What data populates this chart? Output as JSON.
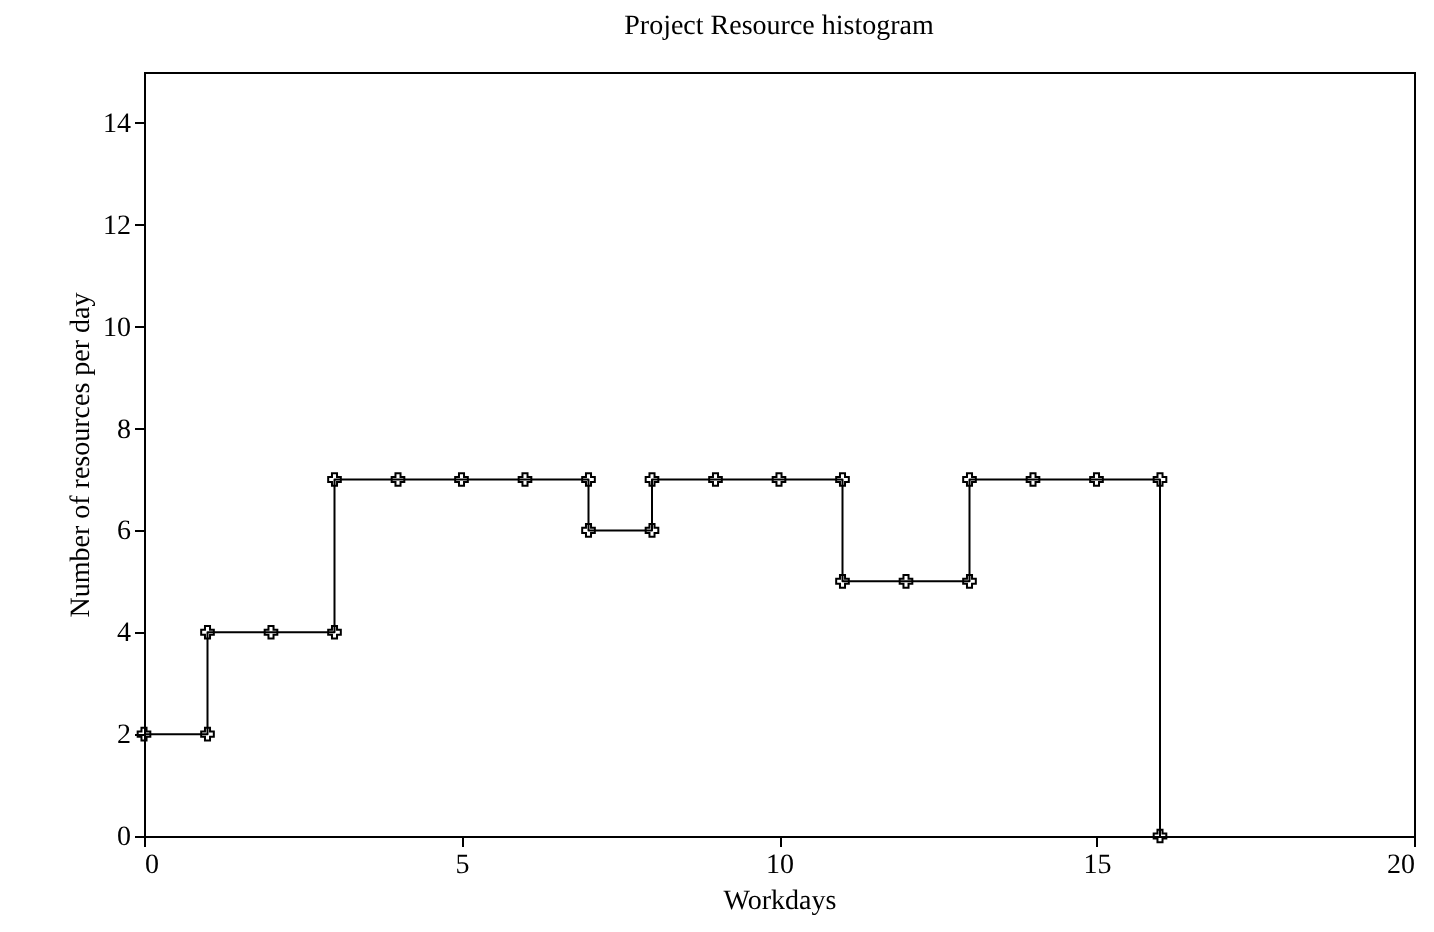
{
  "chart_data": {
    "type": "step",
    "title": "Project Resource histogram",
    "xlabel": "Workdays",
    "ylabel": "Number of resources per day",
    "x": [
      0,
      1,
      1,
      2,
      3,
      3,
      4,
      5,
      6,
      7,
      7,
      8,
      8,
      9,
      10,
      11,
      11,
      12,
      13,
      13,
      14,
      15,
      16,
      16
    ],
    "series": [
      {
        "color": "#000000",
        "values": [
          2,
          2,
          4,
          4,
          4,
          7,
          7,
          7,
          7,
          7,
          6,
          6,
          7,
          7,
          7,
          7,
          5,
          5,
          5,
          7,
          7,
          7,
          7,
          0
        ]
      }
    ],
    "xlim": [
      0,
      20
    ],
    "xticks": [
      0,
      5,
      10,
      15,
      20
    ],
    "ylim": [
      0,
      15
    ],
    "yticks": [
      0,
      2,
      4,
      6,
      8,
      10,
      12,
      14
    ],
    "grid": false,
    "marker": "cross",
    "line_style": "solid"
  }
}
